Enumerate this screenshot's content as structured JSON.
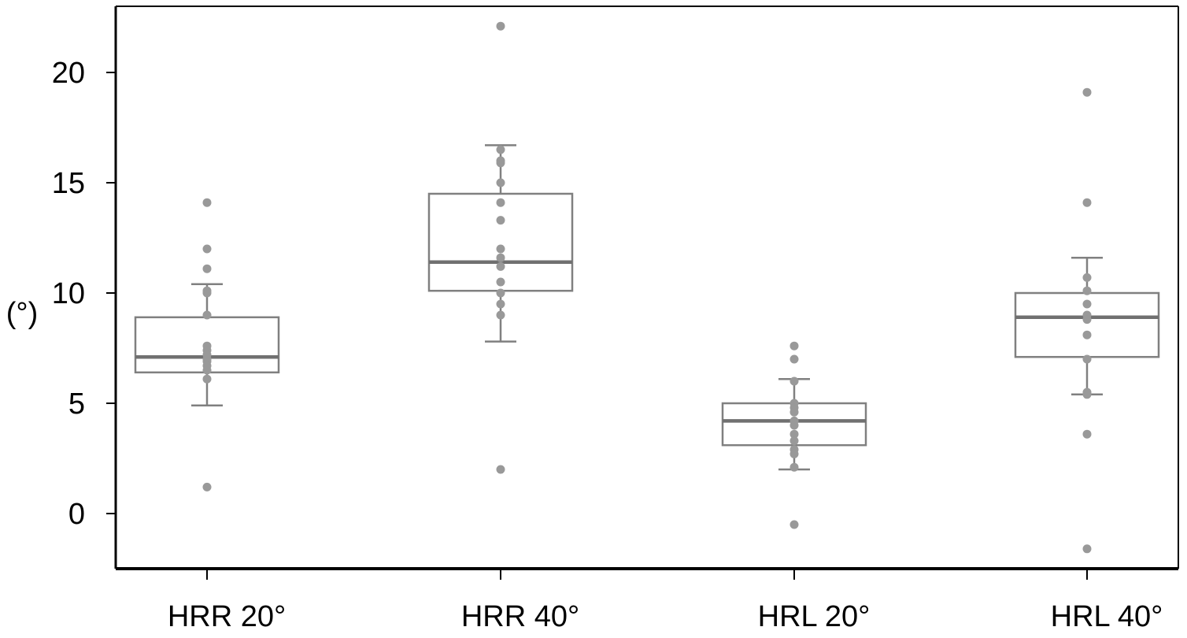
{
  "chart_data": {
    "type": "boxplot",
    "title": "",
    "xlabel": "",
    "ylabel": "(°)",
    "ylim": [
      -2.5,
      23
    ],
    "yticks": [
      0,
      5,
      10,
      15,
      20
    ],
    "ytick_labels": [
      "0",
      "5",
      "10",
      "15",
      "20"
    ],
    "grid": false,
    "legend": "none",
    "colors": {
      "box": "#808080",
      "median": "#707070",
      "points": "#999999",
      "axis": "#000000"
    },
    "categories": [
      "HRR 20°",
      "HRR 40°",
      "HRL 20°",
      "HRL 40°"
    ],
    "boxes": [
      {
        "label": "HRR 20°",
        "whisker_low": 4.9,
        "q1": 6.4,
        "median": 7.1,
        "q3": 8.9,
        "whisker_high": 10.4,
        "points": [
          14.1,
          12.0,
          11.1,
          10.1,
          10.0,
          9.0,
          7.6,
          7.4,
          7.2,
          7.0,
          6.9,
          6.7,
          6.5,
          6.1,
          1.2
        ]
      },
      {
        "label": "HRR 40°",
        "whisker_low": 7.8,
        "q1": 10.1,
        "median": 11.4,
        "q3": 14.5,
        "whisker_high": 16.7,
        "points": [
          22.1,
          16.5,
          16.0,
          15.9,
          15.0,
          14.1,
          13.3,
          12.0,
          11.6,
          11.2,
          10.5,
          10.0,
          9.5,
          9.0,
          2.0
        ]
      },
      {
        "label": "HRL 20°",
        "whisker_low": 2.0,
        "q1": 3.1,
        "median": 4.2,
        "q3": 5.0,
        "whisker_high": 6.1,
        "points": [
          7.6,
          7.0,
          6.0,
          5.0,
          4.8,
          4.6,
          4.2,
          4.0,
          3.6,
          3.3,
          2.9,
          2.7,
          2.1,
          -0.5
        ]
      },
      {
        "label": "HRL 40°",
        "whisker_low": 5.4,
        "q1": 7.1,
        "median": 8.9,
        "q3": 10.0,
        "whisker_high": 11.6,
        "points": [
          19.1,
          14.1,
          10.7,
          10.1,
          9.5,
          9.0,
          8.8,
          8.1,
          7.0,
          5.5,
          5.4,
          3.6,
          -1.6
        ]
      }
    ]
  }
}
